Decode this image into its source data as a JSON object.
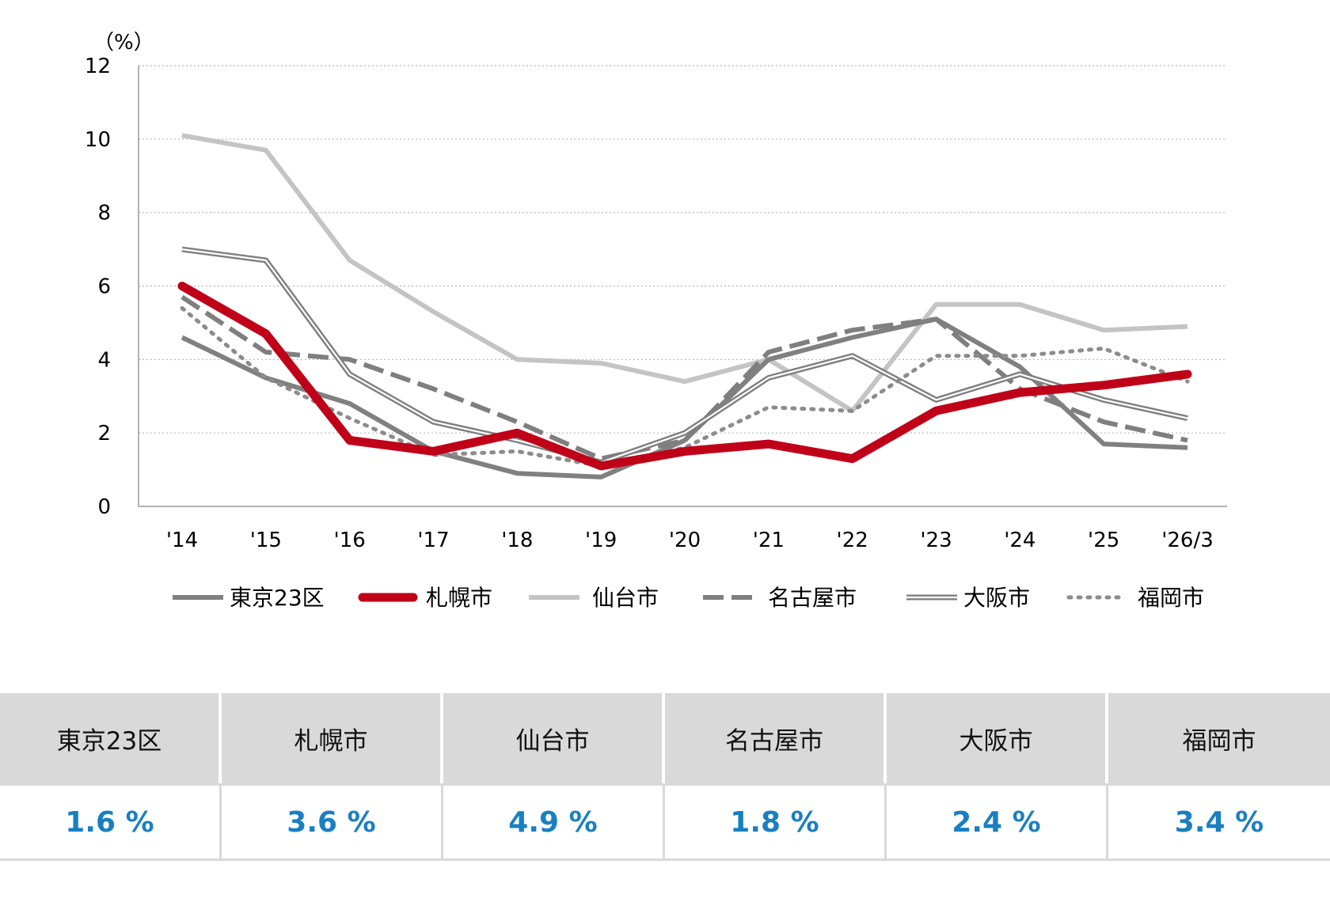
{
  "chart_data": {
    "type": "line",
    "unit_label": "（%）",
    "categories": [
      "'14",
      "'15",
      "'16",
      "'17",
      "'18",
      "'19",
      "'20",
      "'21",
      "'22",
      "'23",
      "'24",
      "'25",
      "'26/3"
    ],
    "ylim": [
      0,
      12
    ],
    "yticks": [
      0,
      2,
      4,
      6,
      8,
      10,
      12
    ],
    "grid": "horizontal dotted",
    "legend_position": "bottom",
    "series": [
      {
        "name": "東京23区",
        "color": "#808080",
        "style": "solid-thick",
        "values": [
          4.6,
          3.5,
          2.8,
          1.5,
          0.9,
          0.8,
          1.8,
          4.0,
          4.6,
          5.1,
          3.8,
          1.7,
          1.6
        ]
      },
      {
        "name": "札幌市",
        "color": "#c00018",
        "style": "solid-extra-thick",
        "values": [
          6.0,
          4.7,
          1.8,
          1.5,
          2.0,
          1.1,
          1.5,
          1.7,
          1.3,
          2.6,
          3.1,
          3.3,
          3.6
        ]
      },
      {
        "name": "仙台市",
        "color": "#c4c4c4",
        "style": "solid-thick",
        "values": [
          10.1,
          9.7,
          6.7,
          5.3,
          4.0,
          3.9,
          3.4,
          4.0,
          2.6,
          5.5,
          5.5,
          4.8,
          4.9
        ]
      },
      {
        "name": "名古屋市",
        "color": "#7f7f7f",
        "style": "dashed",
        "values": [
          5.7,
          4.2,
          4.0,
          3.2,
          2.3,
          1.3,
          1.8,
          4.2,
          4.8,
          5.1,
          3.2,
          2.3,
          1.8
        ]
      },
      {
        "name": "大阪市",
        "color": "#7f7f7f",
        "style": "double",
        "values": [
          7.0,
          6.7,
          3.6,
          2.3,
          1.8,
          1.2,
          2.0,
          3.5,
          4.1,
          2.9,
          3.6,
          2.9,
          2.4
        ]
      },
      {
        "name": "福岡市",
        "color": "#8c8c8c",
        "style": "dotted",
        "values": [
          5.4,
          3.5,
          2.4,
          1.4,
          1.5,
          1.1,
          1.6,
          2.7,
          2.6,
          4.1,
          4.1,
          4.3,
          3.4
        ]
      }
    ]
  },
  "summary_table": {
    "headers": [
      "東京23区",
      "札幌市",
      "仙台市",
      "名古屋市",
      "大阪市",
      "福岡市"
    ],
    "values": [
      "1.6 %",
      "3.6 %",
      "4.9 %",
      "1.8 %",
      "2.4 %",
      "3.4 %"
    ]
  }
}
